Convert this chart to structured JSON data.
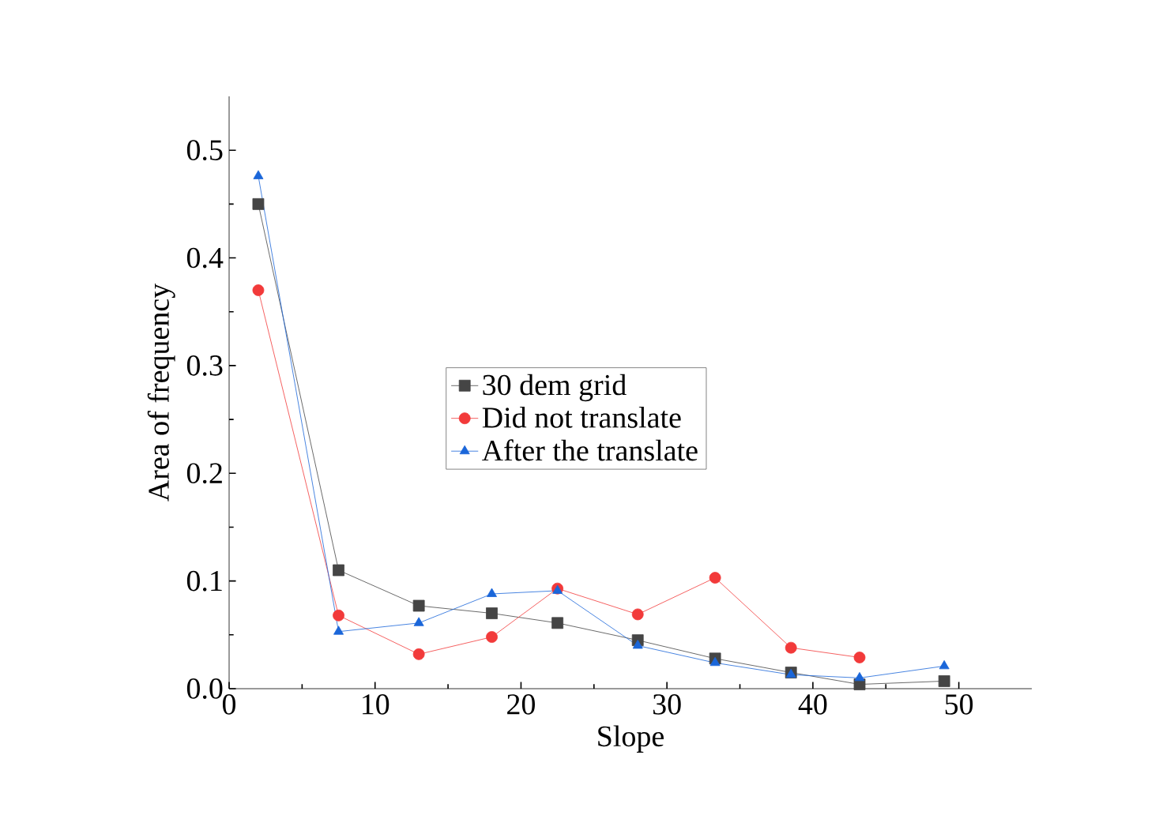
{
  "chart_data": {
    "type": "line",
    "xlabel": "Slope",
    "ylabel": "Area of frequency",
    "xlim": [
      0,
      55
    ],
    "ylim": [
      0,
      0.55
    ],
    "xticks": [
      0,
      10,
      20,
      30,
      40,
      50
    ],
    "yticks": [
      {
        "value": 0,
        "label": "0.0"
      },
      0.1,
      0.2,
      0.3,
      0.4,
      0.5
    ],
    "legend": "center",
    "grid": false,
    "line_style": "solid",
    "series": [
      {
        "name": "30 dem grid",
        "color": "#454545",
        "marker": "square",
        "x": [
          2,
          7.5,
          13,
          18,
          22.5,
          28,
          33.3,
          38.5,
          43.2,
          49
        ],
        "values": [
          0.45,
          0.11,
          0.077,
          0.07,
          0.061,
          0.045,
          0.028,
          0.015,
          0.004,
          0.007
        ]
      },
      {
        "name": "Did not translate",
        "color": "#f23a3a",
        "marker": "circle",
        "x": [
          2,
          7.5,
          13,
          18,
          22.5,
          28,
          33.3,
          38.5,
          43.2
        ],
        "values": [
          0.37,
          0.068,
          0.032,
          0.048,
          0.093,
          0.069,
          0.103,
          0.038,
          0.029
        ]
      },
      {
        "name": "After the translate",
        "color": "#1a66d9",
        "marker": "triangle",
        "x": [
          2,
          7.5,
          13,
          18,
          22.5,
          28,
          33.3,
          38.5,
          43.2,
          49
        ],
        "values": [
          0.476,
          0.053,
          0.061,
          0.088,
          0.091,
          0.04,
          0.024,
          0.013,
          0.01,
          0.021
        ]
      }
    ]
  }
}
